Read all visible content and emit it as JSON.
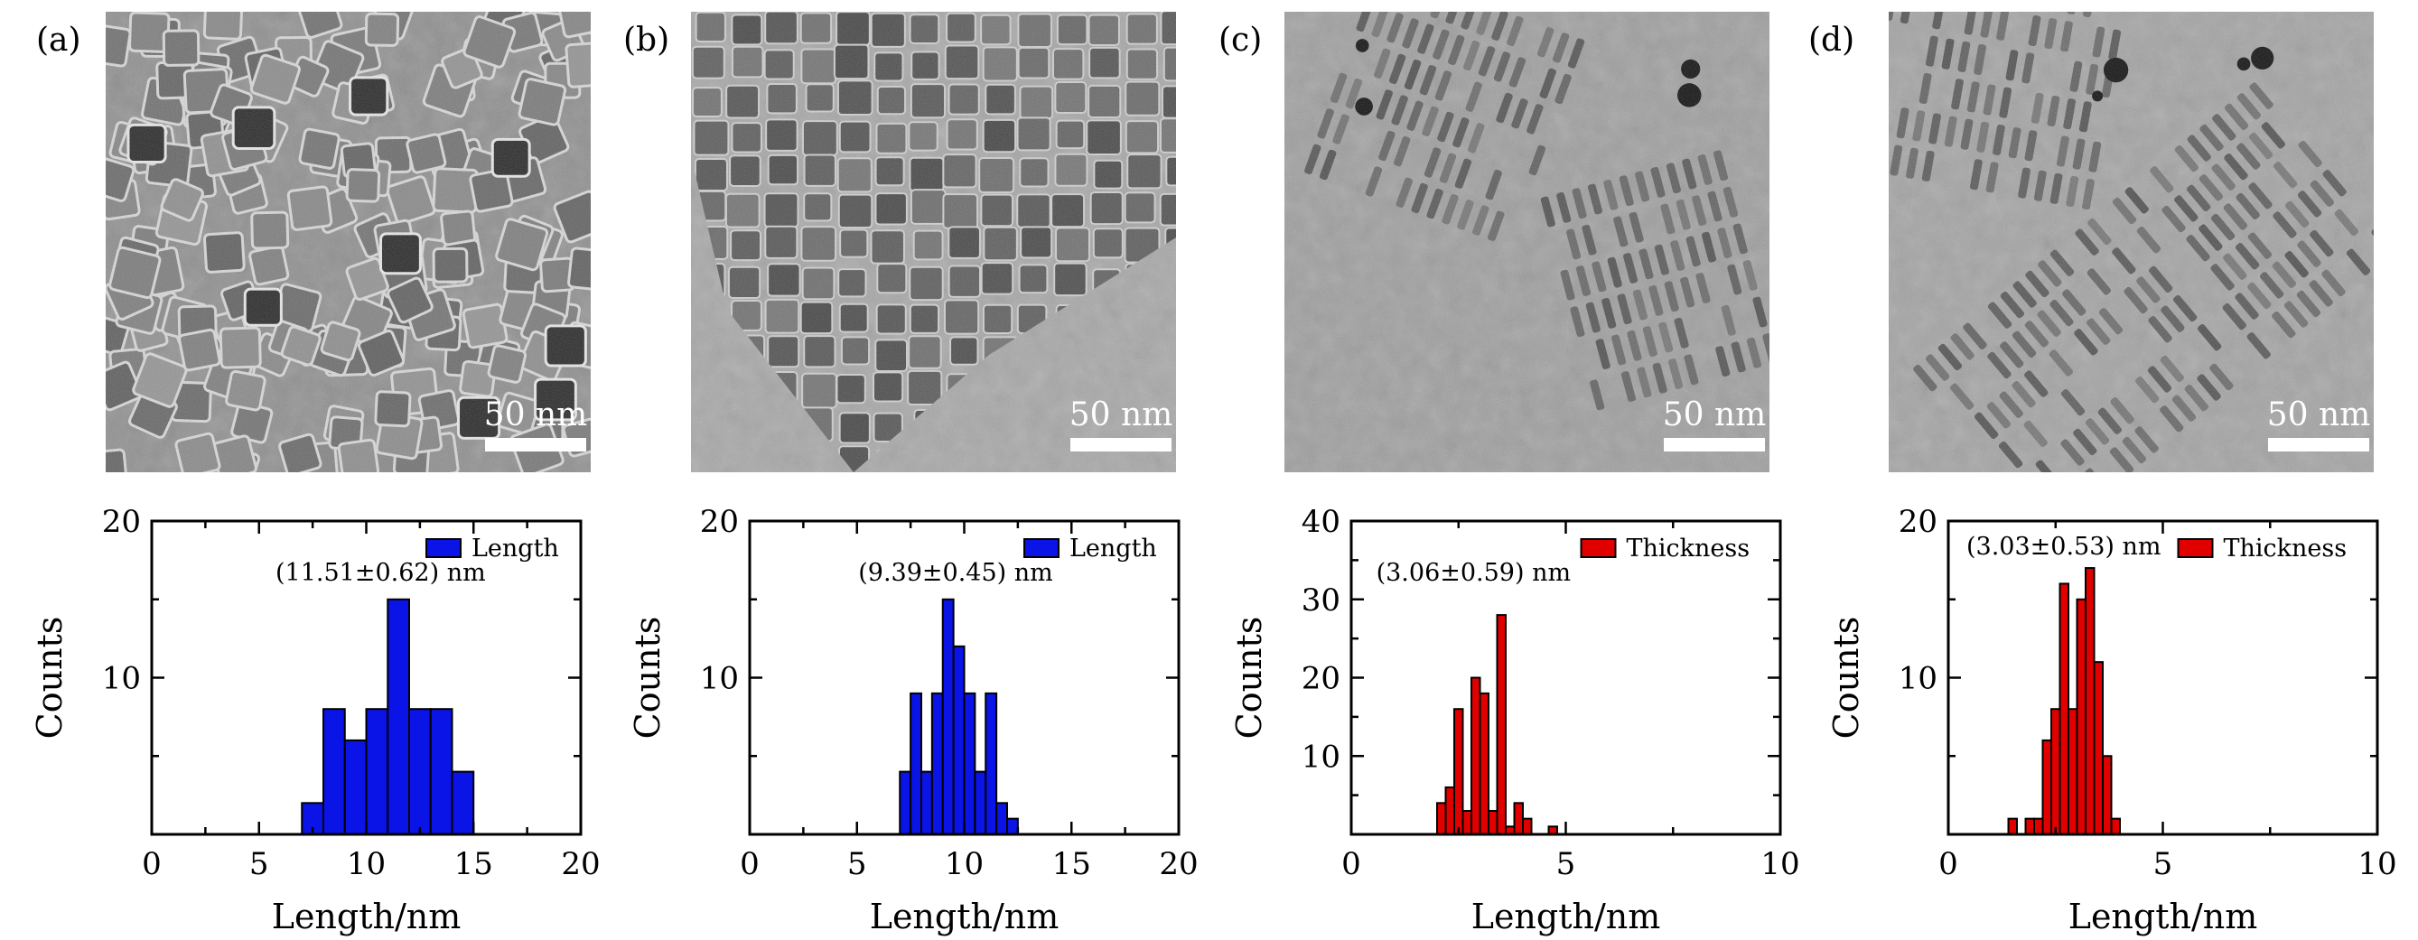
{
  "panels": [
    {
      "label": "(a)",
      "scale_bar": "50 nm"
    },
    {
      "label": "(b)",
      "scale_bar": "50 nm"
    },
    {
      "label": "(c)",
      "scale_bar": "50 nm"
    },
    {
      "label": "(d)",
      "scale_bar": "50 nm"
    }
  ],
  "colors": {
    "blue": "#0a14e6",
    "red": "#e00000",
    "edge": "#000000"
  },
  "chart_data": [
    {
      "type": "bar",
      "panel": "(a)",
      "xlabel": "Length/nm",
      "ylabel": "Counts",
      "xlim": [
        0,
        20
      ],
      "ylim": [
        0,
        20
      ],
      "xticks": [
        0,
        5,
        10,
        15,
        20
      ],
      "yticks": [
        10,
        20
      ],
      "bin_width": 1,
      "legend": "Length",
      "legend_position": "top-right",
      "annotation": "(11.51±0.62) nm",
      "bins": [
        {
          "x": 7.5,
          "count": 2
        },
        {
          "x": 8.5,
          "count": 8
        },
        {
          "x": 9.5,
          "count": 6
        },
        {
          "x": 10.5,
          "count": 8
        },
        {
          "x": 11.5,
          "count": 15
        },
        {
          "x": 12.5,
          "count": 8
        },
        {
          "x": 13.5,
          "count": 8
        },
        {
          "x": 14.5,
          "count": 4
        }
      ]
    },
    {
      "type": "bar",
      "panel": "(b)",
      "xlabel": "Length/nm",
      "ylabel": "Counts",
      "xlim": [
        0,
        20
      ],
      "ylim": [
        0,
        20
      ],
      "xticks": [
        0,
        5,
        10,
        15,
        20
      ],
      "yticks": [
        10,
        20
      ],
      "bin_width": 0.5,
      "legend": "Length",
      "legend_position": "top-right",
      "annotation": "(9.39±0.45) nm",
      "bins": [
        {
          "x": 7.25,
          "count": 4
        },
        {
          "x": 7.75,
          "count": 9
        },
        {
          "x": 8.25,
          "count": 4
        },
        {
          "x": 8.75,
          "count": 9
        },
        {
          "x": 9.25,
          "count": 15
        },
        {
          "x": 9.75,
          "count": 12
        },
        {
          "x": 10.25,
          "count": 9
        },
        {
          "x": 10.75,
          "count": 4
        },
        {
          "x": 11.25,
          "count": 9
        },
        {
          "x": 11.75,
          "count": 2
        },
        {
          "x": 12.25,
          "count": 1
        }
      ]
    },
    {
      "type": "bar",
      "panel": "(c)",
      "xlabel": "Length/nm",
      "ylabel": "Counts",
      "xlim": [
        0,
        10
      ],
      "ylim": [
        0,
        40
      ],
      "xticks": [
        0,
        5,
        10
      ],
      "yticks": [
        10,
        20,
        30,
        40
      ],
      "bin_width": 0.2,
      "legend": "Thickness",
      "legend_position": "top-right",
      "annotation": "(3.06±0.59) nm",
      "bins": [
        {
          "x": 2.1,
          "count": 4
        },
        {
          "x": 2.3,
          "count": 6
        },
        {
          "x": 2.5,
          "count": 16
        },
        {
          "x": 2.7,
          "count": 3
        },
        {
          "x": 2.9,
          "count": 20
        },
        {
          "x": 3.1,
          "count": 18
        },
        {
          "x": 3.3,
          "count": 3
        },
        {
          "x": 3.5,
          "count": 28
        },
        {
          "x": 3.7,
          "count": 1
        },
        {
          "x": 3.9,
          "count": 4
        },
        {
          "x": 4.1,
          "count": 2
        },
        {
          "x": 4.7,
          "count": 1
        }
      ]
    },
    {
      "type": "bar",
      "panel": "(d)",
      "xlabel": "Length/nm",
      "ylabel": "Counts",
      "xlim": [
        0,
        10
      ],
      "ylim": [
        0,
        20
      ],
      "xticks": [
        0,
        5,
        10
      ],
      "yticks": [
        10,
        20
      ],
      "bin_width": 0.2,
      "legend": "Thickness",
      "legend_position": "top-right",
      "annotation": "(3.03±0.53) nm",
      "bins": [
        {
          "x": 1.5,
          "count": 1
        },
        {
          "x": 1.9,
          "count": 1
        },
        {
          "x": 2.1,
          "count": 1
        },
        {
          "x": 2.3,
          "count": 6
        },
        {
          "x": 2.5,
          "count": 8
        },
        {
          "x": 2.7,
          "count": 16
        },
        {
          "x": 2.9,
          "count": 8
        },
        {
          "x": 3.1,
          "count": 15
        },
        {
          "x": 3.3,
          "count": 17
        },
        {
          "x": 3.5,
          "count": 11
        },
        {
          "x": 3.7,
          "count": 5
        },
        {
          "x": 3.9,
          "count": 1
        }
      ]
    }
  ]
}
